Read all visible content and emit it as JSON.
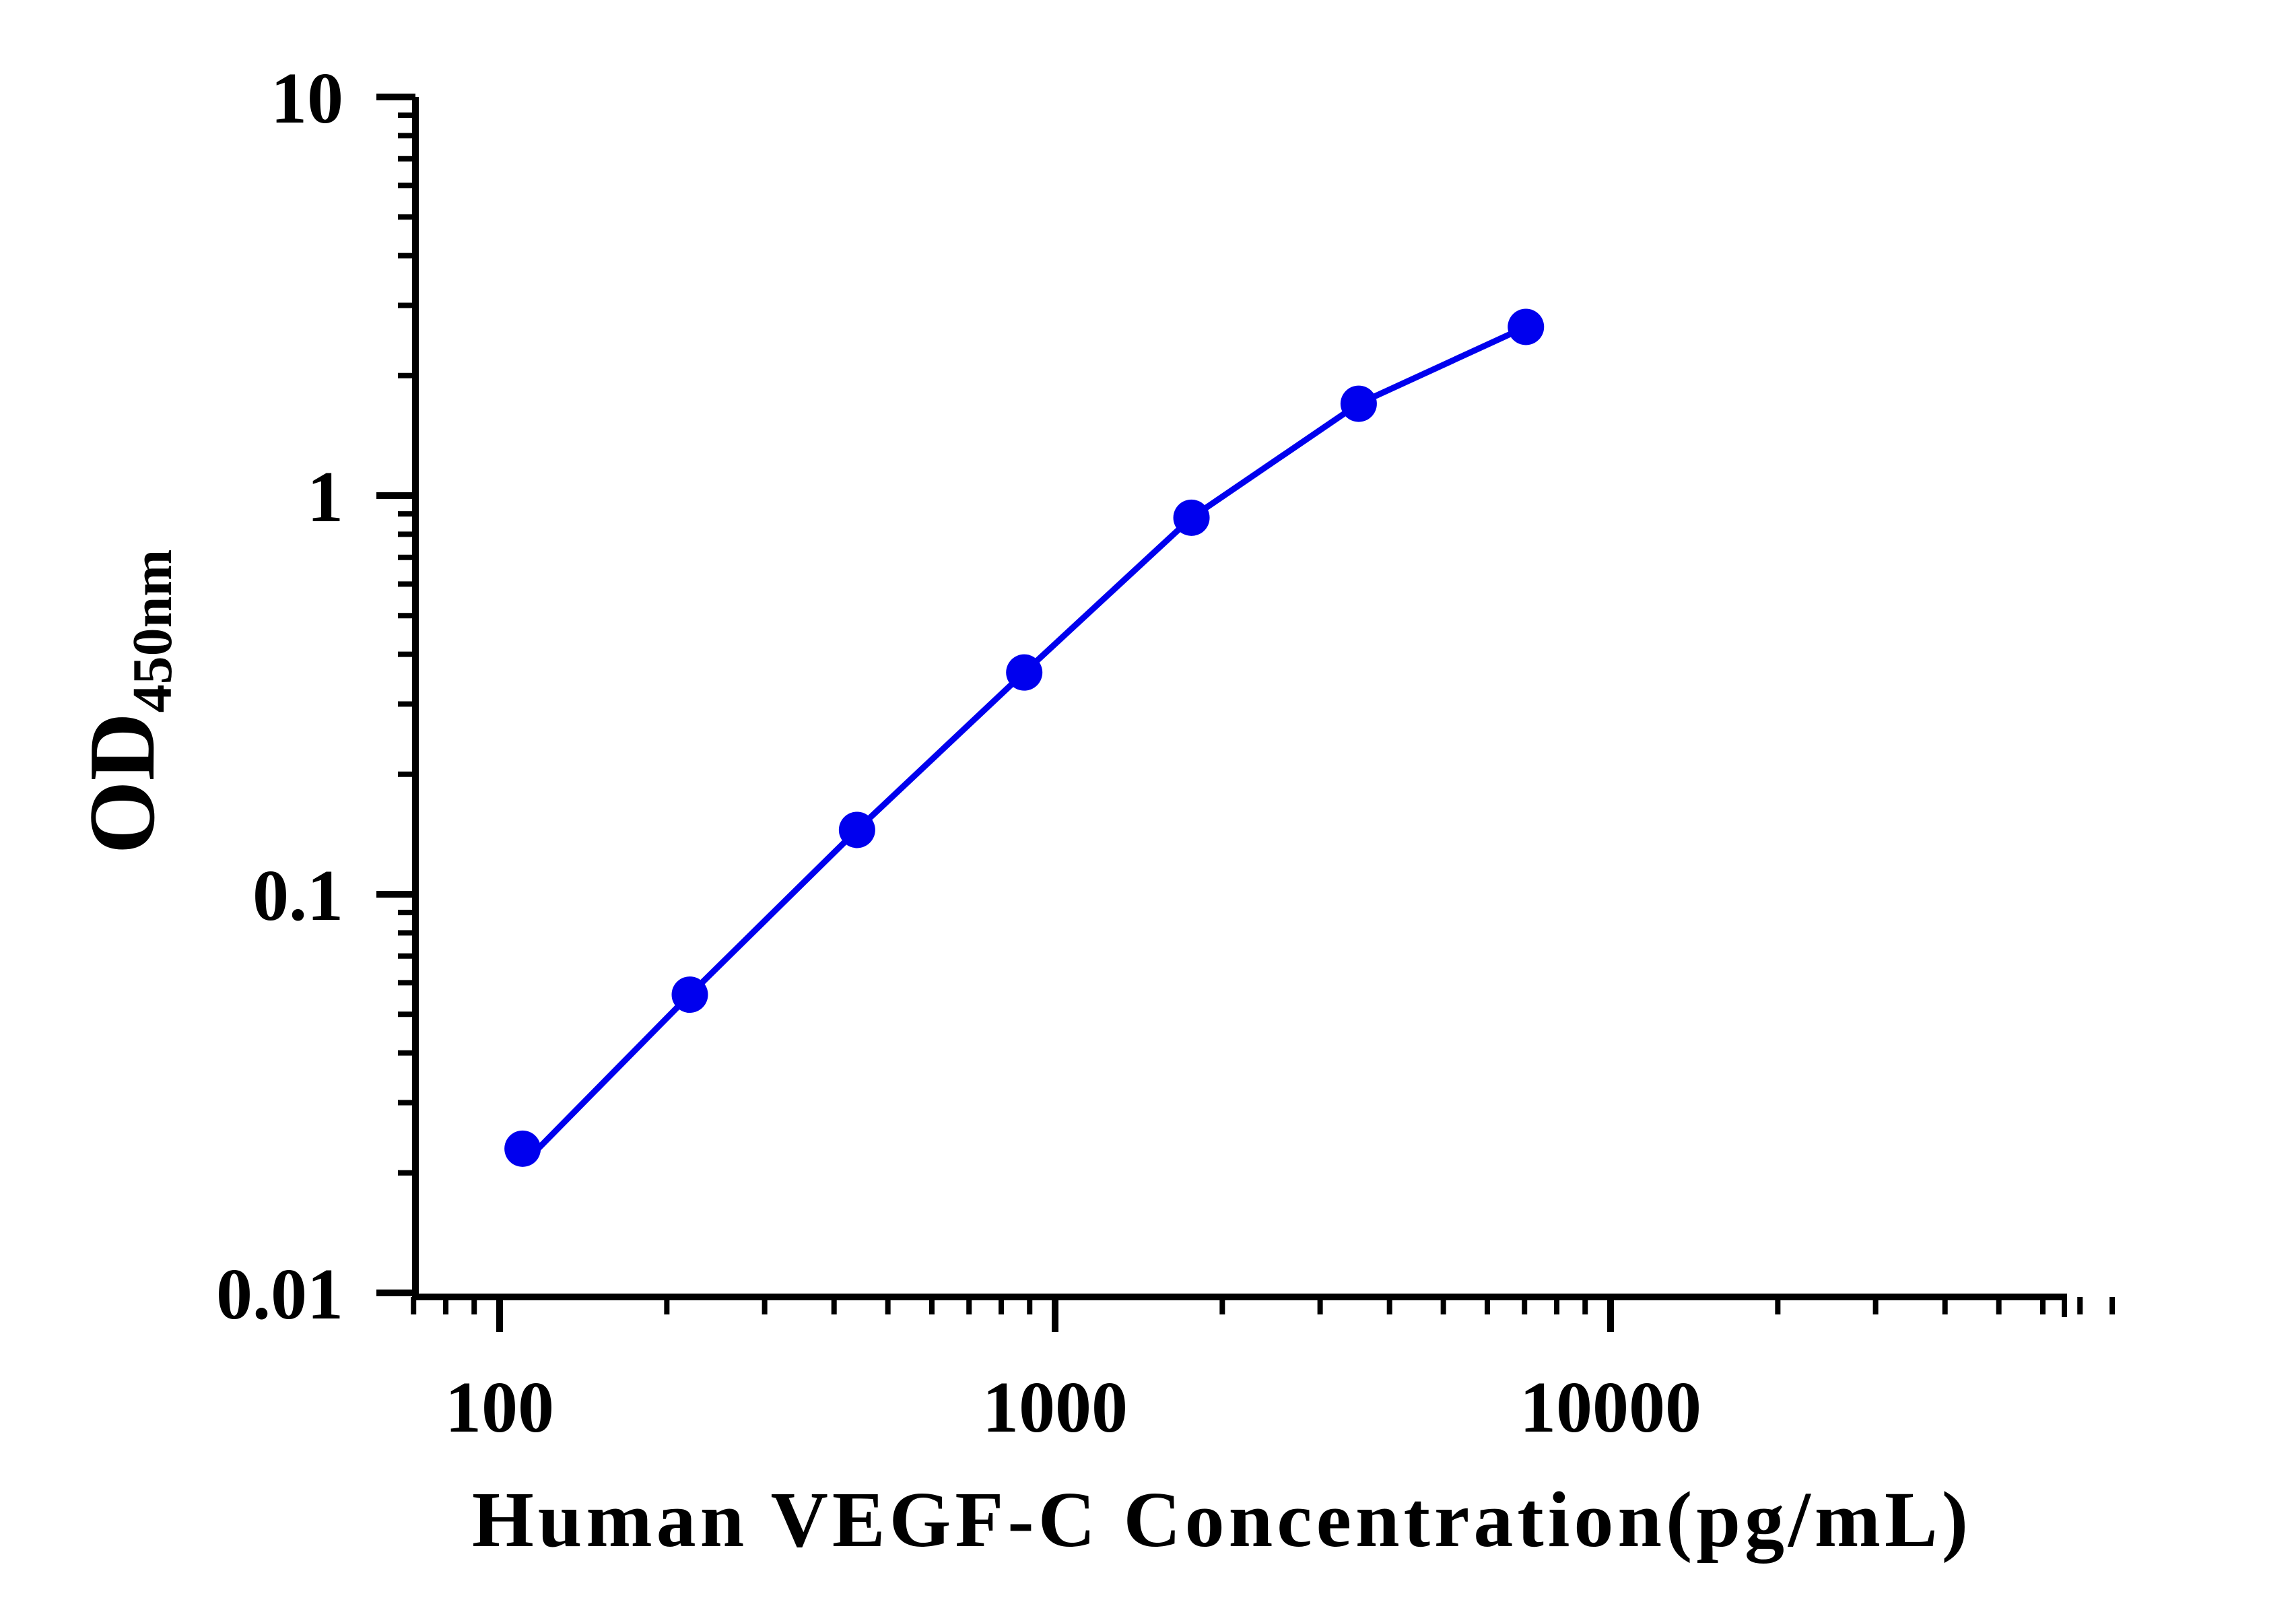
{
  "chart_data": {
    "type": "line",
    "xlabel": "Human VEGF-C Concentration(pg/mL)",
    "ylabel": {
      "main": "OD",
      "subscript": "450nm"
    },
    "x_scale": "log",
    "y_scale": "log",
    "xlim": [
      70,
      80000
    ],
    "ylim": [
      0.01,
      10
    ],
    "x_ticks": [
      {
        "value": 100,
        "label": "100"
      },
      {
        "value": 1000,
        "label": "1000"
      },
      {
        "value": 10000,
        "label": "10000"
      }
    ],
    "y_ticks": [
      {
        "value": 0.01,
        "label": "0.01"
      },
      {
        "value": 0.1,
        "label": "0.1"
      },
      {
        "value": 1,
        "label": "1"
      },
      {
        "value": 10,
        "label": "10"
      }
    ],
    "grid": false,
    "series": [
      {
        "color": "#0000ee",
        "x": [
          110,
          220,
          440,
          880,
          1760,
          3520,
          7040
        ],
        "y": [
          0.023,
          0.056,
          0.145,
          0.36,
          0.88,
          1.7,
          2.65
        ],
        "fit_line_start_y": 0.021
      }
    ]
  }
}
